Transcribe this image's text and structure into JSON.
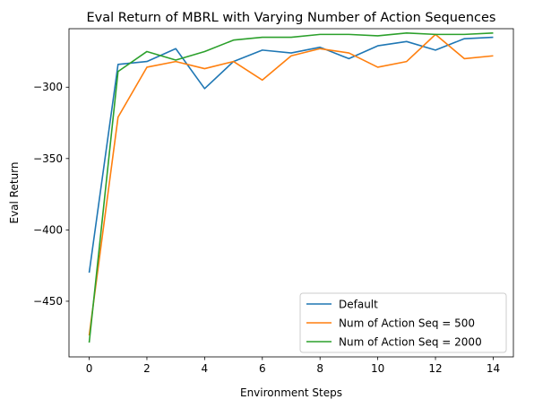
{
  "chart_data": {
    "type": "line",
    "title": "Eval Return of MBRL with Varying Number of Action Sequences",
    "xlabel": "Environment Steps",
    "ylabel": "Eval Return",
    "x": [
      0,
      1,
      2,
      3,
      4,
      5,
      6,
      7,
      8,
      9,
      10,
      11,
      12,
      13,
      14
    ],
    "xlim": [
      -0.7,
      14.7
    ],
    "ylim": [
      -489,
      -259
    ],
    "xticks": [
      0,
      2,
      4,
      6,
      8,
      10,
      12,
      14
    ],
    "yticks": [
      -450,
      -400,
      -350,
      -300
    ],
    "xtick_labels": [
      "0",
      "2",
      "4",
      "6",
      "8",
      "10",
      "12",
      "14"
    ],
    "ytick_labels": [
      "−450",
      "−400",
      "−350",
      "−300"
    ],
    "grid": false,
    "legend_position": "lower-right",
    "series": [
      {
        "name": "Default",
        "color": "#1f77b4",
        "values": [
          -430,
          -284,
          -282,
          -273,
          -301,
          -282,
          -274,
          -276,
          -272,
          -280,
          -271,
          -268,
          -274,
          -266,
          -265
        ]
      },
      {
        "name": "Num of Action Seq = 500",
        "color": "#ff7f0e",
        "values": [
          -474,
          -321,
          -286,
          -282,
          -287,
          -282,
          -295,
          -278,
          -273,
          -276,
          -286,
          -282,
          -263,
          -280,
          -278
        ]
      },
      {
        "name": "Num of Action Seq = 2000",
        "color": "#2ca02c",
        "values": [
          -479,
          -289,
          -275,
          -281,
          -275,
          -267,
          -265,
          -265,
          -263,
          -263,
          -264,
          -262,
          -263,
          -263,
          -262
        ]
      }
    ]
  }
}
